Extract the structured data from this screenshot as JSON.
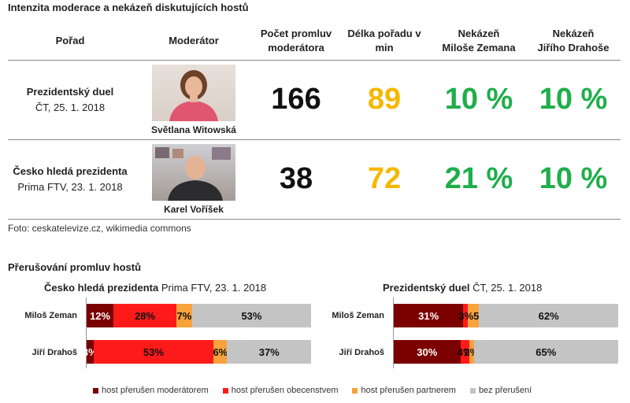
{
  "top_title": "Intenzita moderace a nekázeň diskutujících hostů",
  "table": {
    "headers": [
      "Pořad",
      "Moderátor",
      "Počet promluv moderátora",
      "Délka pořadu v min",
      "Nekázeň Miloše Zemana",
      "Nekázeň Jiřího Drahoše"
    ],
    "header_lines": [
      [
        "Pořad"
      ],
      [
        "Moderátor"
      ],
      [
        "Počet promluv",
        "moderátora"
      ],
      [
        "Délka pořadu v",
        "min"
      ],
      [
        "Nekázeň",
        "Miloše Zemana"
      ],
      [
        "Nekázeň",
        "Jiřího Drahoše"
      ]
    ],
    "rows": [
      {
        "show": "Prezidentský duel",
        "show_sub": "ČT, 25. 1. 2018",
        "moderator": "Světlana Witowská",
        "utterances": "166",
        "length": "89",
        "zeman": "10 %",
        "drahos": "10 %"
      },
      {
        "show": "Česko hledá prezidenta",
        "show_sub": "Prima FTV, 23. 1. 2018",
        "moderator": "Karel Voříšek",
        "utterances": "38",
        "length": "72",
        "zeman": "21 %",
        "drahos": "10 %"
      }
    ]
  },
  "foto_credit": "Foto: ceskatelevize.cz, wikimedia commons",
  "interrupt_title": "Přerušování promluv hostů",
  "colors": {
    "moderator": "#7b0000",
    "audience": "#ff1a1a",
    "partner": "#f7a23b",
    "none": "#c4c4c4",
    "green": "#1fae4b",
    "yellow": "#f5b800"
  },
  "chart_data": [
    {
      "type": "bar",
      "orientation": "horizontal-stacked-100",
      "title": "Česko hledá prezidenta",
      "title_suffix": "Prima FTV, 23. 1. 2018",
      "categories": [
        "Miloš Zeman",
        "Jiří Drahoš"
      ],
      "series": [
        {
          "name": "host přerušen moderátorem",
          "values": [
            12,
            3
          ],
          "labels": [
            "12%",
            "3%"
          ]
        },
        {
          "name": "host přerušen obecenstvem",
          "values": [
            28,
            53
          ],
          "labels": [
            "28%",
            "53%"
          ]
        },
        {
          "name": "host přerušen partnerem",
          "values": [
            7,
            6
          ],
          "labels": [
            "7%",
            "6%"
          ]
        },
        {
          "name": "bez přerušení",
          "values": [
            53,
            37
          ],
          "labels": [
            "53%",
            "37%"
          ]
        }
      ],
      "xlim": [
        0,
        100
      ]
    },
    {
      "type": "bar",
      "orientation": "horizontal-stacked-100",
      "title": "Prezidentský duel",
      "title_suffix": "ČT, 25. 1. 2018",
      "categories": [
        "Miloš Zeman",
        "Jiří Drahoš"
      ],
      "series": [
        {
          "name": "host přerušen moderátorem",
          "values": [
            31,
            30
          ],
          "labels": [
            "31%",
            "30%"
          ]
        },
        {
          "name": "host přerušen obecenstvem",
          "values": [
            2,
            4
          ],
          "labels": [
            "",
            "4%"
          ]
        },
        {
          "name": "host přerušen partnerem",
          "values": [
            5,
            2
          ],
          "labels": [
            "3%5%",
            "2%"
          ]
        },
        {
          "name": "bez přerušení",
          "values": [
            62,
            65
          ],
          "labels": [
            "62%",
            "65%"
          ]
        }
      ],
      "xlim": [
        0,
        100
      ]
    }
  ],
  "legend": [
    "host přerušen moderátorem",
    "host přerušen obecenstvem",
    "host přerušen partnerem",
    "bez přerušení"
  ]
}
